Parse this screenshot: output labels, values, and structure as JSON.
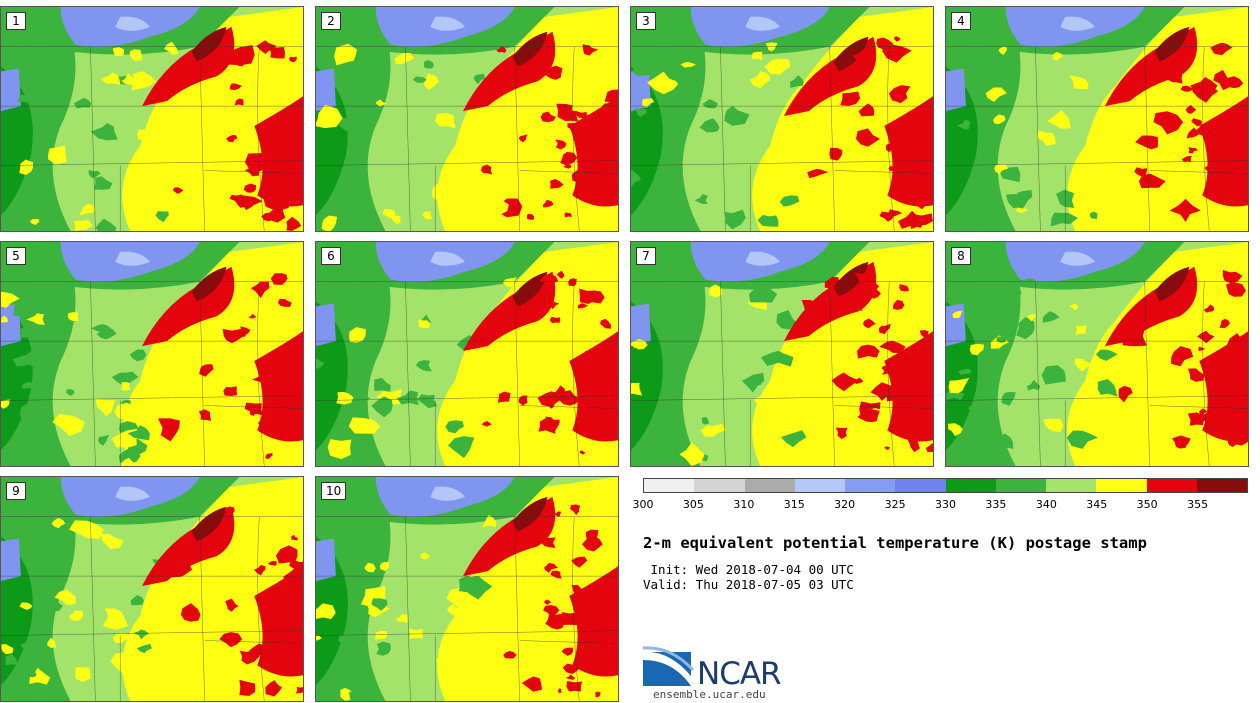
{
  "panels": [
    {
      "label": "1"
    },
    {
      "label": "2"
    },
    {
      "label": "3"
    },
    {
      "label": "4"
    },
    {
      "label": "5"
    },
    {
      "label": "6"
    },
    {
      "label": "7"
    },
    {
      "label": "8"
    },
    {
      "label": "9"
    },
    {
      "label": "10"
    }
  ],
  "colorbar": {
    "colors": [
      "#efefef",
      "#d4d4d4",
      "#ababab",
      "#b4c8f8",
      "#879cf5",
      "#6e82eb",
      "#0d9a18",
      "#3bb33c",
      "#a4e36a",
      "#ffff14",
      "#e4040e",
      "#870c0c"
    ],
    "ticks": [
      "300",
      "305",
      "310",
      "315",
      "320",
      "325",
      "330",
      "335",
      "340",
      "345",
      "350",
      "355"
    ]
  },
  "title": "2-m equivalent potential temperature (K) postage stamp",
  "init_line": " Init: Wed 2018-07-04 00 UTC",
  "valid_line": "Valid: Thu 2018-07-05 03 UTC",
  "logo": {
    "text": "NCAR",
    "url": "ensemble.ucar.edu"
  }
}
